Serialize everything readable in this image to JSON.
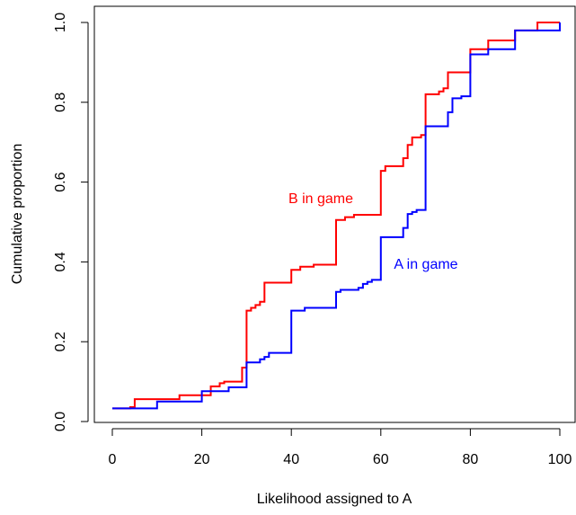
{
  "chart_data": {
    "type": "line",
    "title": "",
    "xlabel": "Likelihood assigned to A",
    "ylabel": "Cumulative proportion",
    "xlim": [
      0,
      100
    ],
    "ylim": [
      0,
      1
    ],
    "x_ticks": [
      0,
      20,
      40,
      60,
      80,
      100
    ],
    "y_ticks": [
      0.0,
      0.2,
      0.4,
      0.6,
      0.8,
      1.0
    ],
    "x_tick_labels": [
      "0",
      "20",
      "40",
      "60",
      "80",
      "100"
    ],
    "y_tick_labels": [
      "0.0",
      "0.2",
      "0.4",
      "0.6",
      "0.8",
      "1.0"
    ],
    "grid": false,
    "legend": "none",
    "annotations": [
      {
        "text": "B in game",
        "series": "B in game",
        "color": "#ff0000"
      },
      {
        "text": "A in game",
        "series": "A in game",
        "color": "#0000ff"
      }
    ],
    "series": [
      {
        "name": "B in game",
        "color": "#ff0000",
        "step": true,
        "x": [
          0,
          4,
          5,
          8,
          10,
          12,
          15,
          18,
          20,
          22,
          23,
          24,
          25,
          29,
          30,
          31,
          32,
          33,
          34,
          36,
          39,
          40,
          41,
          42,
          45,
          49,
          50,
          52,
          54,
          55,
          59,
          60,
          61,
          64,
          65,
          66,
          67,
          69,
          70,
          72,
          73,
          74,
          75,
          79,
          80,
          83,
          84,
          89,
          90,
          94,
          95,
          100
        ],
        "y": [
          0.033,
          0.036,
          0.056,
          0.056,
          0.056,
          0.056,
          0.066,
          0.066,
          0.066,
          0.088,
          0.088,
          0.096,
          0.1,
          0.135,
          0.278,
          0.285,
          0.292,
          0.3,
          0.348,
          0.348,
          0.348,
          0.38,
          0.38,
          0.388,
          0.393,
          0.393,
          0.505,
          0.512,
          0.518,
          0.518,
          0.518,
          0.628,
          0.64,
          0.64,
          0.66,
          0.693,
          0.712,
          0.718,
          0.82,
          0.82,
          0.827,
          0.835,
          0.875,
          0.875,
          0.933,
          0.933,
          0.955,
          0.955,
          0.98,
          0.98,
          1.0,
          1.0
        ]
      },
      {
        "name": "A in game",
        "color": "#0000ff",
        "step": true,
        "x": [
          0,
          9,
          10,
          15,
          19,
          20,
          25,
          26,
          29,
          30,
          32,
          33,
          34,
          35,
          39,
          40,
          42,
          43,
          44,
          46,
          49,
          50,
          51,
          54,
          55,
          56,
          57,
          58,
          59,
          60,
          64,
          65,
          66,
          67,
          68,
          69,
          70,
          74,
          75,
          76,
          77,
          78,
          79,
          80,
          83,
          84,
          89,
          90,
          94,
          95,
          99,
          100
        ],
        "y": [
          0.033,
          0.033,
          0.05,
          0.05,
          0.05,
          0.076,
          0.076,
          0.086,
          0.086,
          0.148,
          0.148,
          0.156,
          0.162,
          0.172,
          0.172,
          0.278,
          0.278,
          0.285,
          0.285,
          0.285,
          0.285,
          0.325,
          0.33,
          0.33,
          0.335,
          0.345,
          0.35,
          0.355,
          0.355,
          0.462,
          0.462,
          0.485,
          0.52,
          0.525,
          0.53,
          0.53,
          0.74,
          0.74,
          0.775,
          0.81,
          0.81,
          0.815,
          0.815,
          0.92,
          0.92,
          0.933,
          0.933,
          0.98,
          0.98,
          0.98,
          0.98,
          1.0
        ]
      }
    ]
  }
}
